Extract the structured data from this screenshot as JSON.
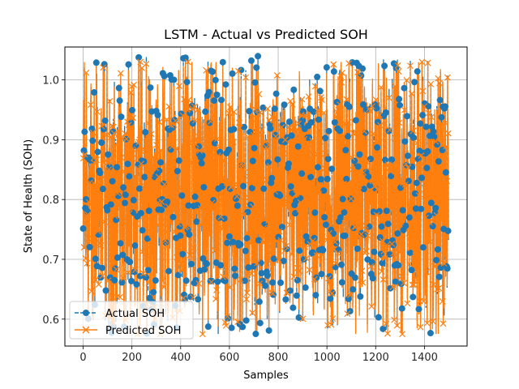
{
  "chart_data": {
    "type": "line",
    "title": "LSTM - Actual vs Predicted SOH",
    "xlabel": "Samples",
    "ylabel": "State of Health (SOH)",
    "xlim": [
      -75,
      1575
    ],
    "ylim": [
      0.555,
      1.055
    ],
    "xticks": [
      0,
      200,
      400,
      600,
      800,
      1000,
      1200,
      1400
    ],
    "yticks": [
      0.6,
      0.7,
      0.8,
      0.9,
      1.0
    ],
    "xtick_labels": [
      "0",
      "200",
      "400",
      "600",
      "800",
      "1000",
      "1200",
      "1400"
    ],
    "ytick_labels": [
      "0.6",
      "0.7",
      "0.8",
      "0.9",
      "1.0"
    ],
    "grid": true,
    "legend_position": "lower left",
    "n_samples": 1500,
    "value_range": [
      0.575,
      1.04
    ],
    "series": [
      {
        "name": "Actual SOH",
        "color": "#1f77b4",
        "marker": "circle",
        "linestyle": "dashed"
      },
      {
        "name": "Predicted SOH",
        "color": "#ff7f0e",
        "marker": "x",
        "linestyle": "solid"
      }
    ],
    "legend": [
      "Actual SOH",
      "Predicted SOH"
    ]
  }
}
